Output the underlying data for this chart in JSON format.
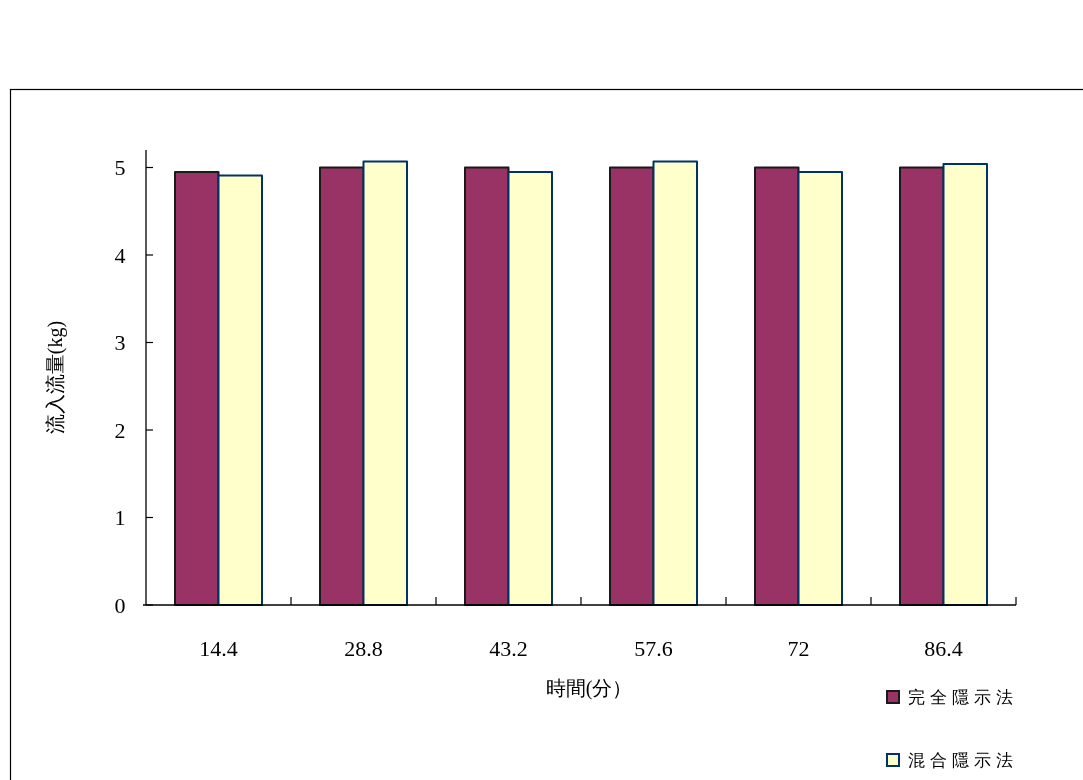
{
  "chart_data": {
    "type": "bar",
    "xlabel": "時間(分）",
    "ylabel": "流入流量(kg)",
    "categories": [
      "14.4",
      "28.8",
      "43.2",
      "57.6",
      "72",
      "86.4"
    ],
    "series": [
      {
        "name": "完全隱示法",
        "color": "#993366",
        "values": [
          4.95,
          5.0,
          5.0,
          5.0,
          5.0,
          5.0
        ]
      },
      {
        "name": "混合隱示法",
        "color": "#ffffcc",
        "values": [
          4.91,
          5.07,
          4.95,
          5.07,
          4.95,
          5.04
        ]
      }
    ],
    "ylim": [
      0,
      5.2
    ],
    "yticks": [
      0,
      1,
      2,
      3,
      4,
      5
    ],
    "legend": "bottom right"
  }
}
